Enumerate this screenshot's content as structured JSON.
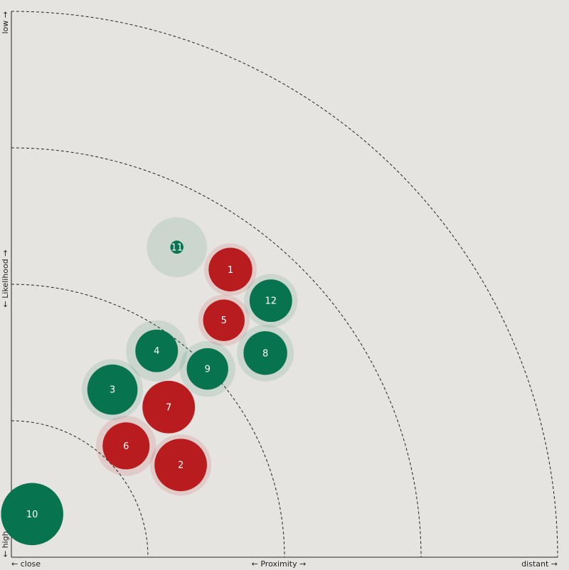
{
  "chart_data": {
    "type": "bubble",
    "x_label": "← Proximity →",
    "x_start_label": "← close",
    "x_end_label": "distant →",
    "y_label": "← Likelihood →",
    "y_start_label": "← high",
    "y_end_label": "low →",
    "xlim": [
      0,
      100
    ],
    "ylim": [
      0,
      100
    ],
    "rings": [
      25,
      50,
      75,
      100
    ],
    "points": [
      {
        "label": "1",
        "x": 40.1,
        "y": 52.7,
        "size": 4.0,
        "halo": 4.8,
        "color": "#b81c1f"
      },
      {
        "label": "2",
        "x": 31.0,
        "y": 16.9,
        "size": 4.8,
        "halo": 5.6,
        "color": "#b81c1f"
      },
      {
        "label": "3",
        "x": 18.5,
        "y": 30.7,
        "size": 4.6,
        "halo": 5.6,
        "color": "#07744f"
      },
      {
        "label": "4",
        "x": 26.6,
        "y": 37.8,
        "size": 3.9,
        "halo": 5.6,
        "color": "#07744f"
      },
      {
        "label": "5",
        "x": 38.9,
        "y": 43.4,
        "size": 3.8,
        "halo": 4.7,
        "color": "#b81c1f"
      },
      {
        "label": "6",
        "x": 21.0,
        "y": 20.4,
        "size": 4.3,
        "halo": 5.5,
        "color": "#b81c1f"
      },
      {
        "label": "7",
        "x": 28.8,
        "y": 27.5,
        "size": 4.8,
        "halo": 4.9,
        "color": "#b81c1f"
      },
      {
        "label": "8",
        "x": 46.5,
        "y": 37.4,
        "size": 4.0,
        "halo": 5.2,
        "color": "#07744f"
      },
      {
        "label": "9",
        "x": 35.9,
        "y": 34.5,
        "size": 3.8,
        "halo": 5.1,
        "color": "#07744f"
      },
      {
        "label": "10",
        "x": 3.8,
        "y": 7.9,
        "size": 5.7,
        "halo": 5.7,
        "color": "#07744f"
      },
      {
        "label": "11",
        "x": 30.3,
        "y": 56.8,
        "size": 1.2,
        "halo": 5.5,
        "color": "#07744f"
      },
      {
        "label": "12",
        "x": 47.5,
        "y": 47.0,
        "size": 3.9,
        "halo": 4.9,
        "color": "#07744f"
      }
    ]
  }
}
